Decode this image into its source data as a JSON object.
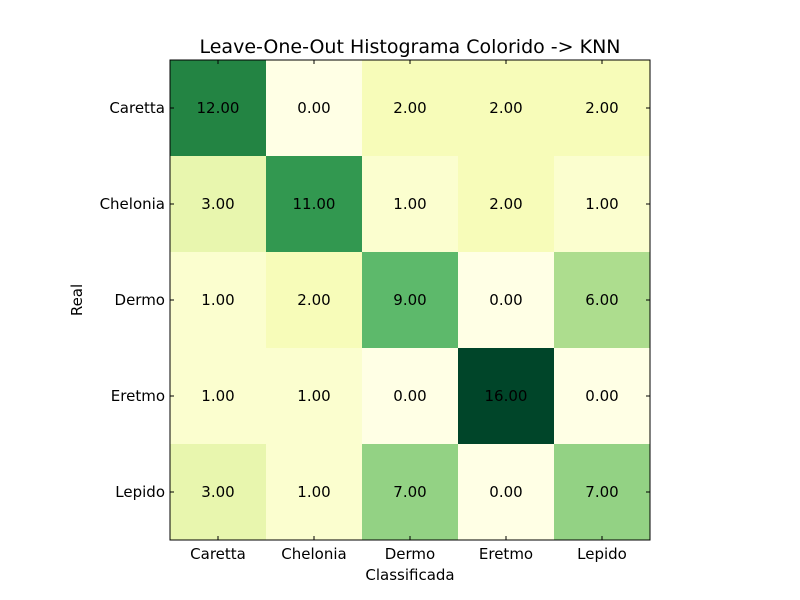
{
  "chart_data": {
    "type": "heatmap",
    "title": "Leave-One-Out Histograma Colorido -> KNN",
    "xlabel": "Classificada",
    "ylabel": "Real",
    "x_categories": [
      "Caretta",
      "Chelonia",
      "Dermo",
      "Eretmo",
      "Lepido"
    ],
    "y_categories": [
      "Caretta",
      "Chelonia",
      "Dermo",
      "Eretmo",
      "Lepido"
    ],
    "values": [
      [
        12.0,
        0.0,
        2.0,
        2.0,
        2.0
      ],
      [
        3.0,
        11.0,
        1.0,
        2.0,
        1.0
      ],
      [
        1.0,
        2.0,
        9.0,
        0.0,
        6.0
      ],
      [
        1.0,
        1.0,
        0.0,
        16.0,
        0.0
      ],
      [
        3.0,
        1.0,
        7.0,
        0.0,
        7.0
      ]
    ],
    "value_labels": [
      [
        "12.00",
        "0.00",
        "2.00",
        "2.00",
        "2.00"
      ],
      [
        "3.00",
        "11.00",
        "1.00",
        "2.00",
        "1.00"
      ],
      [
        "1.00",
        "2.00",
        "9.00",
        "0.00",
        "6.00"
      ],
      [
        "1.00",
        "1.00",
        "0.00",
        "16.00",
        "0.00"
      ],
      [
        "3.00",
        "1.00",
        "7.00",
        "0.00",
        "7.00"
      ]
    ],
    "colormap": "YlGn",
    "color_range": [
      0,
      16
    ]
  }
}
